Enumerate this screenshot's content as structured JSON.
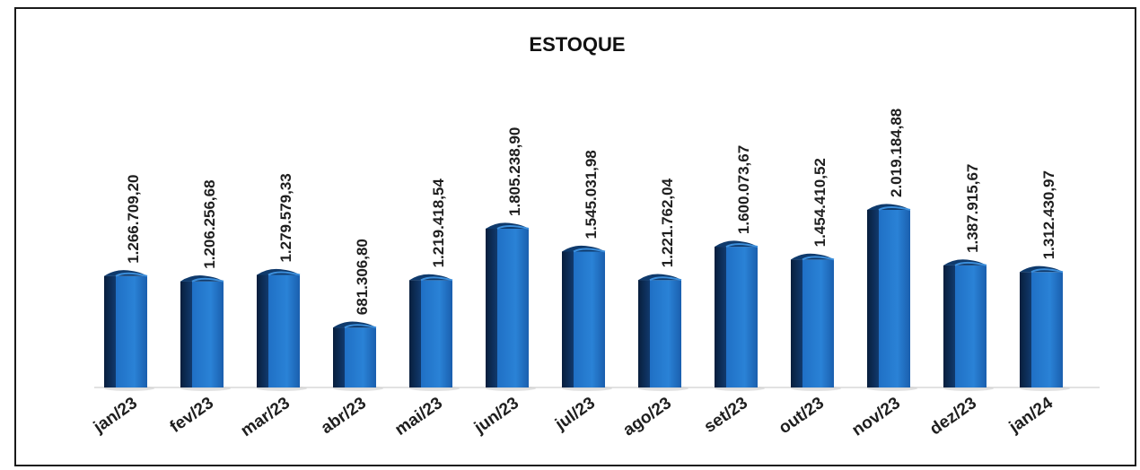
{
  "chart_data": {
    "type": "bar",
    "title": "ESTOQUE",
    "categories": [
      "jan/23",
      "fev/23",
      "mar/23",
      "abr/23",
      "mai/23",
      "jun/23",
      "jul/23",
      "ago/23",
      "set/23",
      "out/23",
      "nov/23",
      "dez/23",
      "jan/24"
    ],
    "values": [
      1266709.2,
      1206256.68,
      1279579.33,
      681306.8,
      1219418.54,
      1805238.9,
      1545031.98,
      1221762.04,
      1600073.67,
      1454410.52,
      2019184.88,
      1387915.67,
      1312430.97
    ],
    "labels": [
      "1.266.709,20",
      "1.206.256,68",
      "1.279.579,33",
      "681.306,80",
      "1.219.418,54",
      "1.805.238,90",
      "1.545.031,98",
      "1.221.762,04",
      "1.600.073,67",
      "1.454.410,52",
      "2.019.184,88",
      "1.387.915,67",
      "1.312.430,97"
    ],
    "ylim": [
      0,
      2019184.88
    ],
    "grid": false,
    "legend": "none",
    "colors": {
      "bar_front": "#1f6fc4",
      "bar_side": "#0d2d55",
      "bar_highlight": "#58a6ea"
    }
  }
}
